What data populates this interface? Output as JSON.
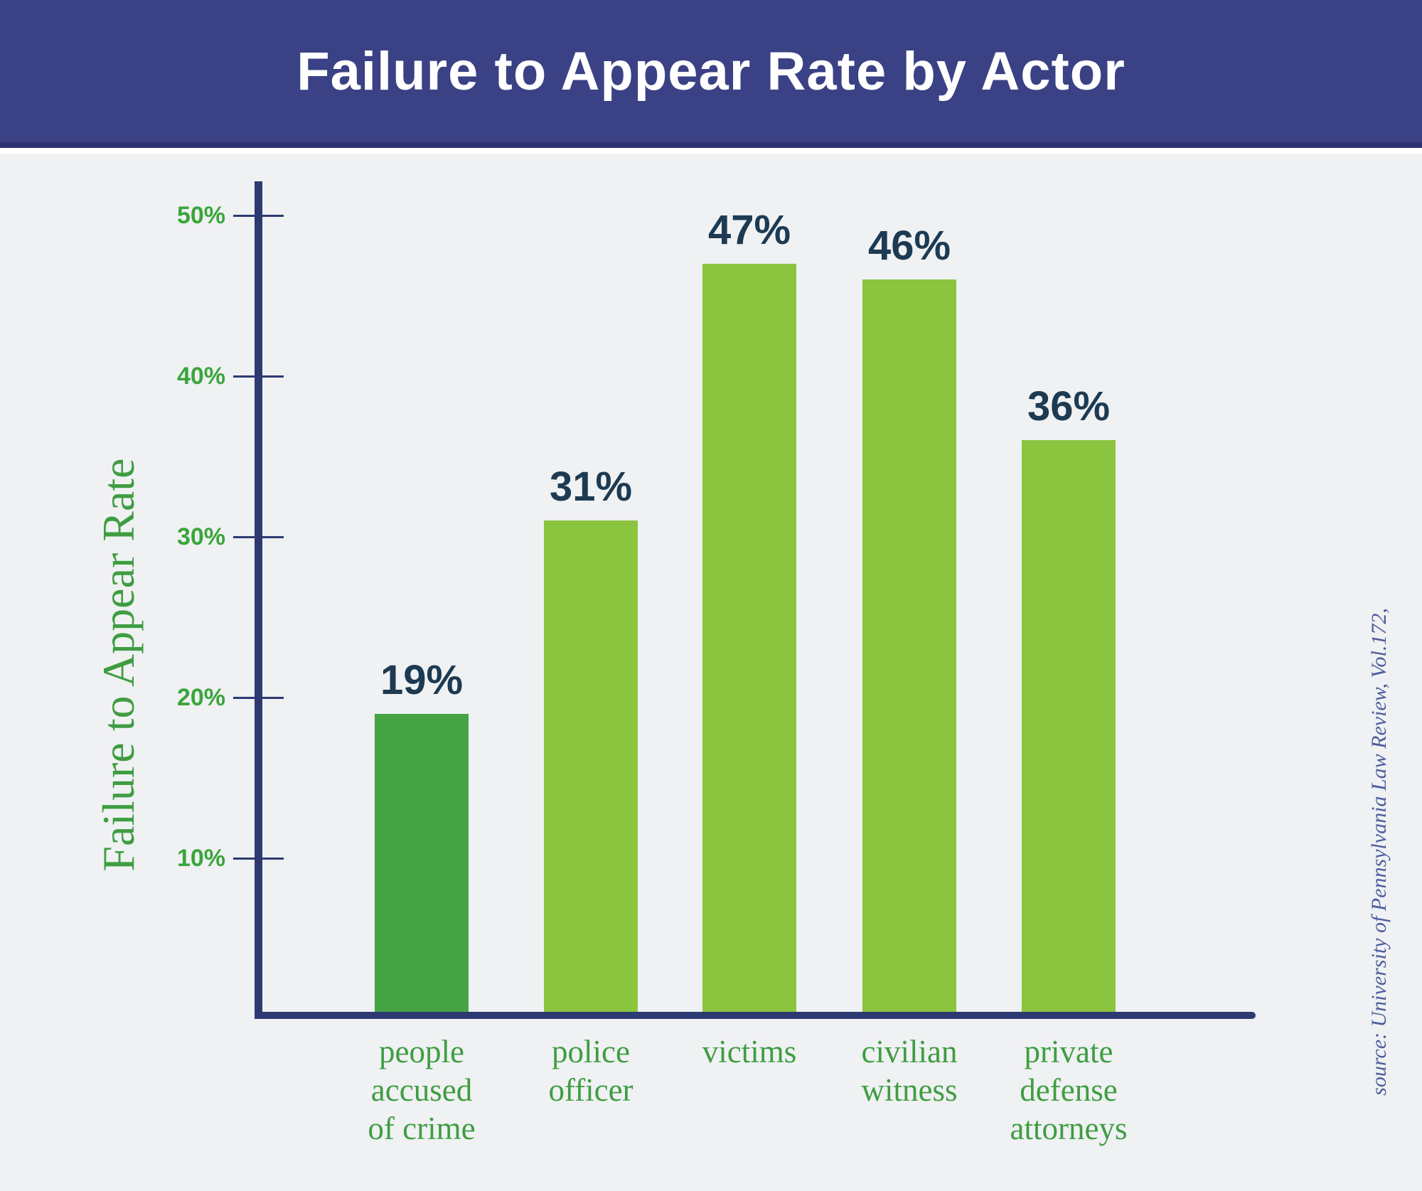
{
  "header": {
    "title": "Failure to Appear Rate by Actor"
  },
  "chart_data": {
    "type": "bar",
    "title": "Failure to Appear Rate by Actor",
    "xlabel": "",
    "ylabel": "Failure to Appear Rate",
    "categories": [
      "people accused of crime",
      "police officer",
      "victims",
      "civilian witness",
      "private defense attorneys"
    ],
    "category_lines": [
      [
        "people",
        "accused",
        "of crime"
      ],
      [
        "police",
        "officer"
      ],
      [
        "victims"
      ],
      [
        "civilian",
        "witness"
      ],
      [
        "private",
        "defense",
        "attorneys"
      ]
    ],
    "values": [
      19,
      31,
      47,
      46,
      36
    ],
    "value_labels": [
      "19%",
      "31%",
      "47%",
      "46%",
      "36%"
    ],
    "yticks": [
      {
        "value": 10,
        "label": "10%"
      },
      {
        "value": 20,
        "label": "20%"
      },
      {
        "value": 30,
        "label": "30%"
      },
      {
        "value": 40,
        "label": "40%"
      },
      {
        "value": 50,
        "label": "50%"
      }
    ],
    "ylim": [
      0,
      52
    ],
    "grid": false,
    "legend_position": "none",
    "bar_colors": [
      "#46a446",
      "#8bc43e",
      "#8bc43e",
      "#8bc43e",
      "#8bc43e"
    ],
    "source": "source: University of Pennsylvania Law Review, Vol.172,"
  },
  "colors": {
    "header_bg": "#3a4184",
    "header_border": "#2b3173",
    "axis": "#2d3a72",
    "tick_label": "#3aa53a",
    "category_label": "#3f9d41",
    "value_label": "#1d3a52",
    "background": "#eff1f3",
    "bar_dark_green": "#46a446",
    "bar_light_green": "#8bc43e",
    "source_text": "#4d5c9b"
  }
}
